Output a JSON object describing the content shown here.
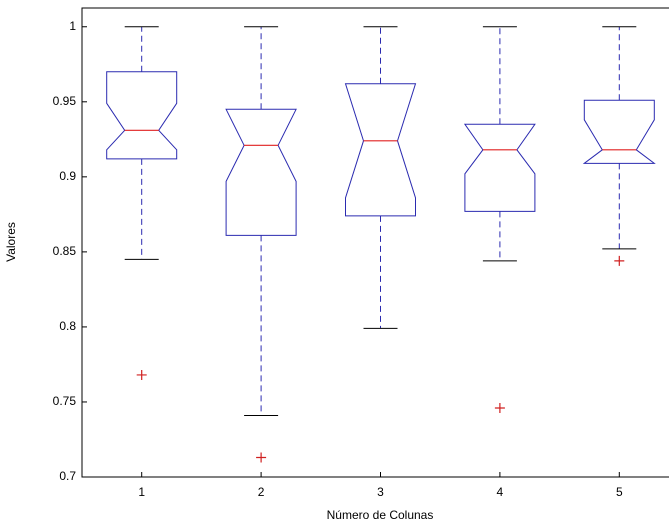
{
  "chart_data": {
    "type": "box",
    "x_label": "Número de Colunas",
    "y_label": "Valores",
    "categories": [
      "1",
      "2",
      "3",
      "4",
      "5"
    ],
    "box_color": "#2b2bb0",
    "median_color": "#e02020",
    "outlier_color": "#d02020",
    "boxes": [
      {
        "whisker_low": 0.845,
        "q1": 0.912,
        "notch_low": 0.918,
        "median": 0.931,
        "notch_high": 0.949,
        "q3": 0.97,
        "whisker_high": 1,
        "outliers": [
          0.768
        ]
      },
      {
        "whisker_low": 0.741,
        "q1": 0.861,
        "notch_low": 0.897,
        "median": 0.921,
        "notch_high": 0.945,
        "q3": 0.945,
        "whisker_high": 1,
        "outliers": [
          0.713
        ]
      },
      {
        "whisker_low": 0.799,
        "q1": 0.874,
        "notch_low": 0.886,
        "median": 0.924,
        "notch_high": 0.962,
        "q3": 0.962,
        "whisker_high": 1,
        "outliers": []
      },
      {
        "whisker_low": 0.844,
        "q1": 0.877,
        "notch_low": 0.902,
        "median": 0.918,
        "notch_high": 0.935,
        "q3": 0.935,
        "whisker_high": 1,
        "outliers": [
          0.746
        ]
      },
      {
        "whisker_low": 0.852,
        "q1": 0.909,
        "notch_low": 0.909,
        "median": 0.918,
        "notch_high": 0.938,
        "q3": 0.951,
        "whisker_high": 1,
        "outliers": [
          0.844
        ]
      }
    ],
    "xlim": [
      0.5,
      5.5
    ],
    "ylim": [
      0.7,
      1.0125
    ],
    "yticks": [
      0.7,
      0.75,
      0.8,
      0.85,
      0.9,
      0.95,
      1
    ]
  }
}
